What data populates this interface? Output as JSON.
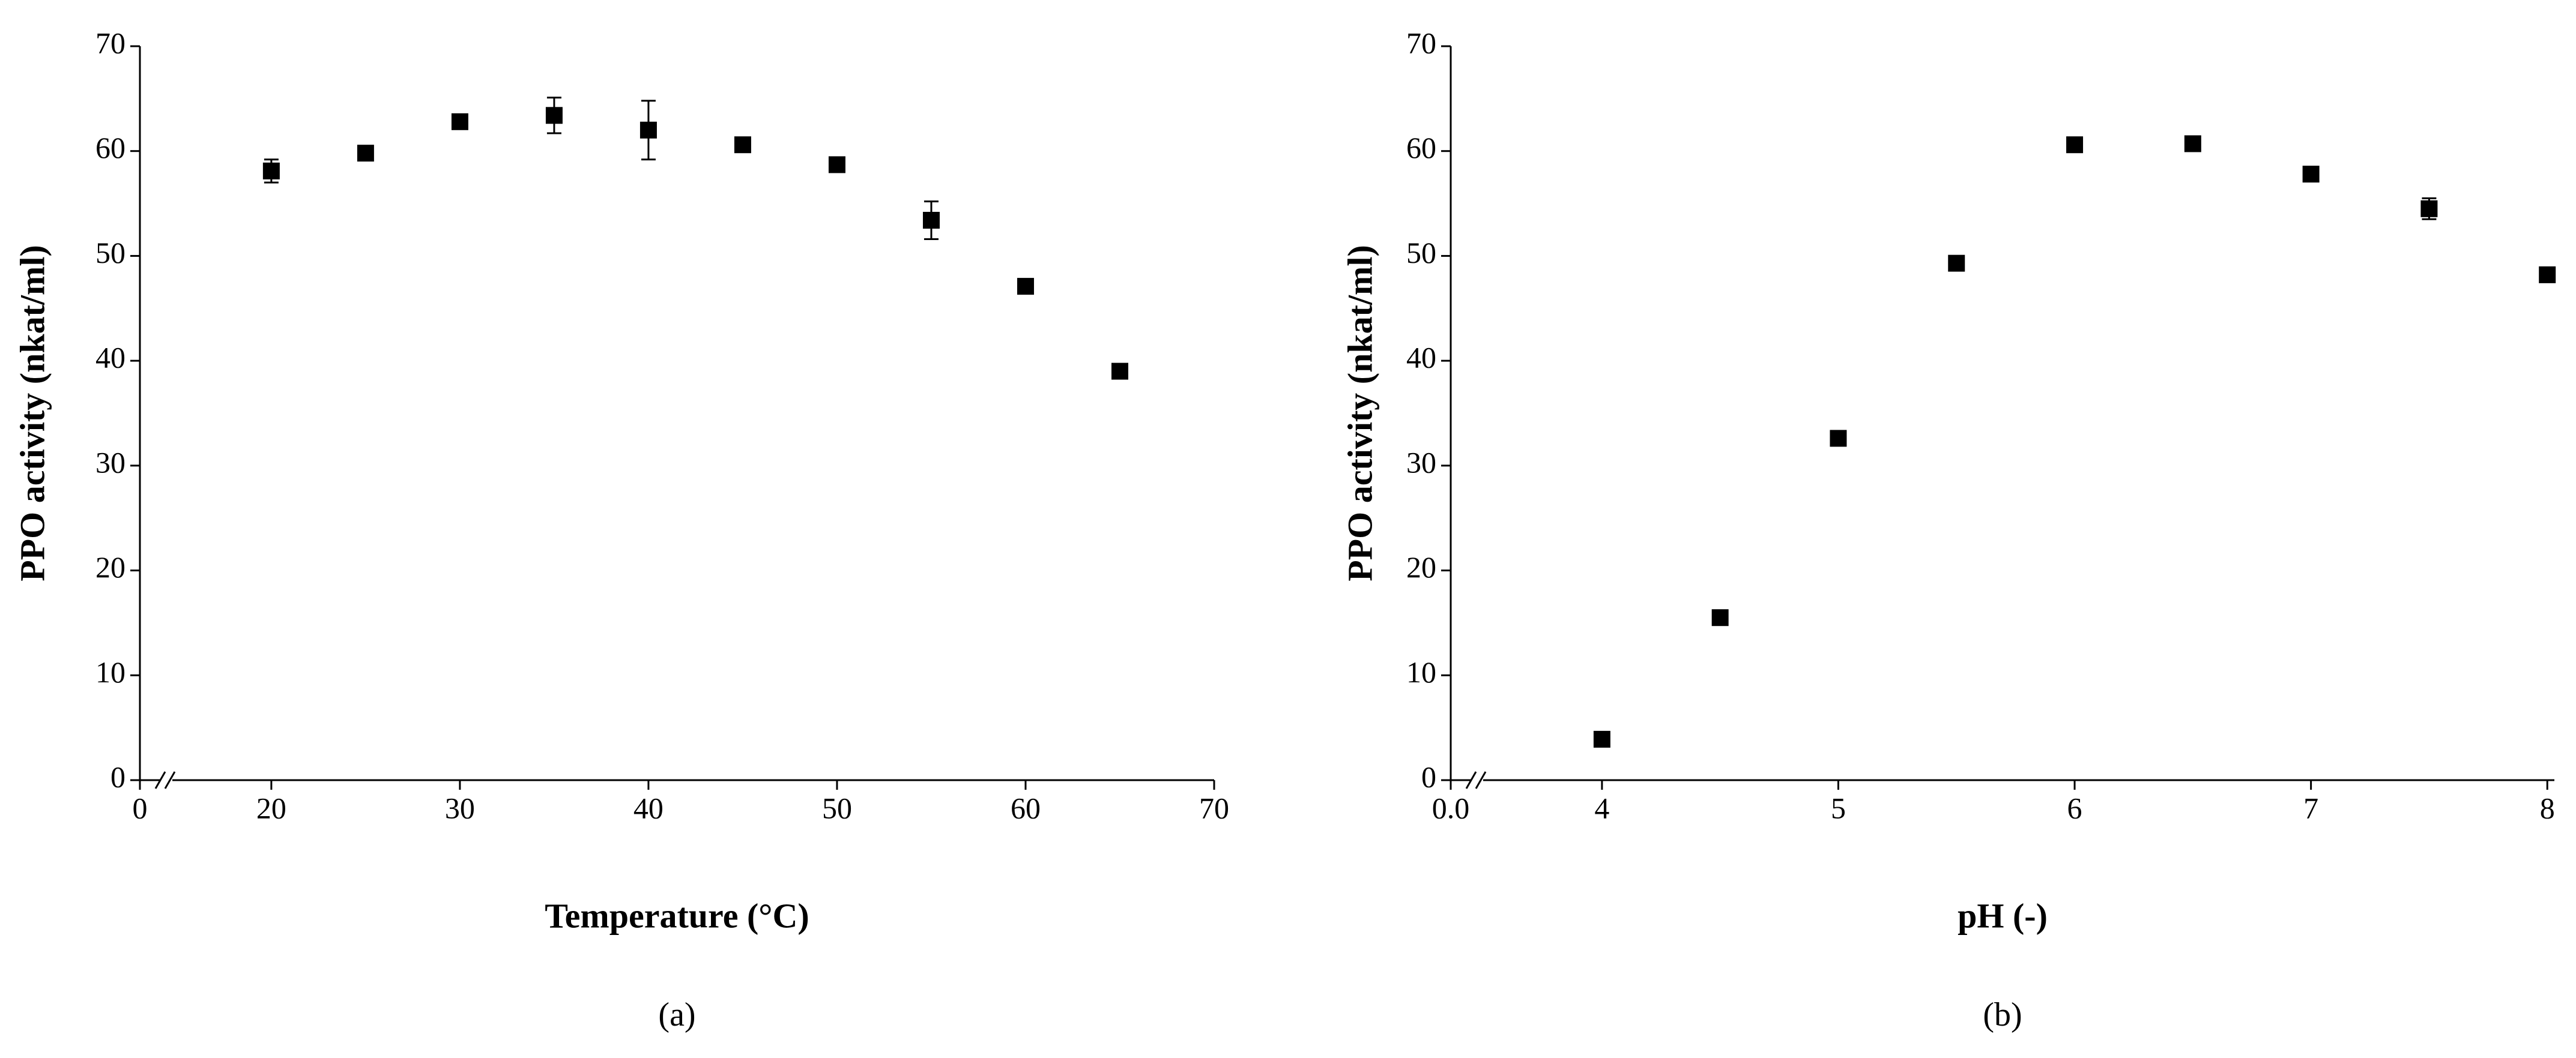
{
  "chart_data": [
    {
      "type": "scatter",
      "panel_label": "(a)",
      "xlabel": "Temperature (°C)",
      "ylabel": "PPO activity (nkat/ml)",
      "x": [
        20,
        25,
        30,
        35,
        40,
        45,
        50,
        55,
        60,
        65
      ],
      "series": [
        {
          "color": "#000000",
          "values": [
            58.1,
            59.8,
            62.8,
            63.4,
            62.0,
            60.6,
            58.7,
            53.4,
            47.1,
            39.0
          ],
          "errors": [
            1.1,
            0.4,
            0.4,
            1.7,
            2.8,
            0.6,
            0.3,
            1.8,
            0.4,
            0.5
          ]
        }
      ],
      "xlim": [
        13.03,
        70
      ],
      "xticks": [
        0,
        20,
        30,
        40,
        50,
        60,
        70
      ],
      "axis_break": true,
      "ylim": [
        0,
        70
      ],
      "yticks": [
        0,
        10,
        20,
        30,
        40,
        50,
        60,
        70
      ]
    },
    {
      "type": "scatter",
      "panel_label": "(b)",
      "xlabel": "pH (-)",
      "ylabel": "PPO activity (nkat/ml)",
      "x": [
        4,
        4.5,
        5,
        5.5,
        6,
        6.5,
        7,
        7.5,
        8
      ],
      "series": [
        {
          "color": "#000000",
          "values": [
            3.9,
            15.5,
            32.6,
            49.3,
            60.6,
            60.7,
            57.8,
            54.5,
            48.2
          ],
          "errors": [
            0.4,
            0.4,
            0.4,
            0.4,
            0.4,
            0.4,
            0.4,
            1.0,
            0.4
          ]
        }
      ],
      "xlim": [
        3.36,
        8.03
      ],
      "xticks": [
        {
          "value": 0,
          "label": "0.0"
        },
        4,
        5,
        6,
        7,
        8
      ],
      "axis_break": true,
      "ylim": [
        0,
        70
      ],
      "yticks": [
        0,
        10,
        20,
        30,
        40,
        50,
        60,
        70
      ]
    }
  ]
}
